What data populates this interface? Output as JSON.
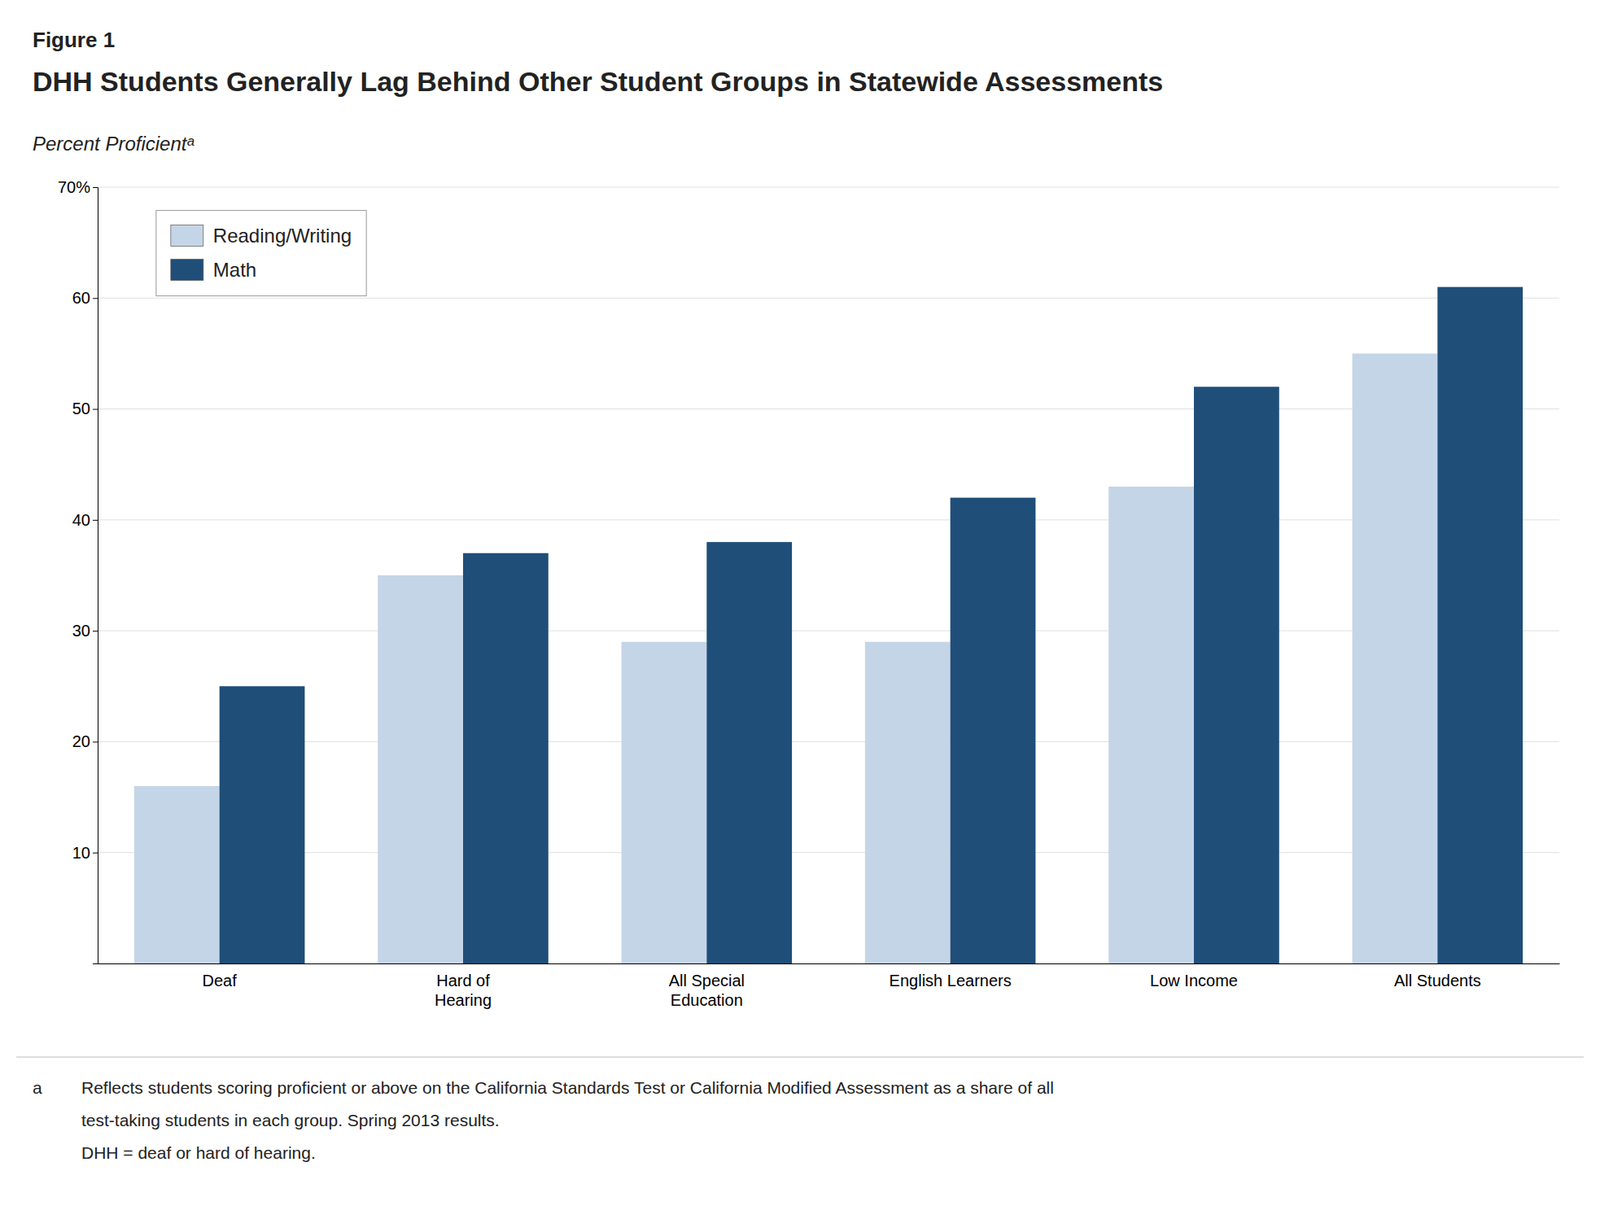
{
  "chart_data": {
    "type": "bar",
    "title": "DHH Students Generally Lag Behind Other Student Groups in Statewide Assessments",
    "ylabel": "Percent Proficientᵃ",
    "categories": [
      "Deaf",
      "Hard of\nHearing",
      "All Special\nEducation",
      "English Learners",
      "Low Income",
      "All Students"
    ],
    "series": [
      {
        "name": "Reading/Writing",
        "color": "#c5d5e8",
        "values": [
          16,
          35,
          29,
          29,
          43,
          55
        ]
      },
      {
        "name": "Math",
        "color": "#1f4e79",
        "values": [
          25,
          37,
          38,
          42,
          52,
          61
        ]
      }
    ],
    "ylim": [
      0,
      70
    ],
    "yticks": [
      10,
      20,
      30,
      40,
      50,
      60,
      {
        "value": 70,
        "label": "70%"
      }
    ],
    "grid": true,
    "legend": "upper left",
    "annotations": [
      "Figure 1",
      "a",
      "Reflects students scoring proficient or above on the California Standards Test or California Modified Assessment as a share of all",
      "test-taking students in each group. Spring 2013 results.",
      "DHH = deaf or hard of hearing."
    ]
  }
}
